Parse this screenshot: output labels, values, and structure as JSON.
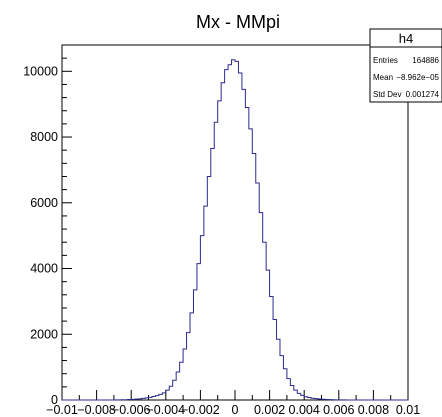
{
  "chart_data": {
    "type": "bar",
    "title": "Mx - MMpi",
    "xlabel": "",
    "ylabel": "",
    "xlim": [
      -0.01,
      0.01
    ],
    "ylim": [
      0,
      10800
    ],
    "bin_width": 0.0002,
    "x_tick_labels": [
      "−0.01",
      "−0.008",
      "−0.006",
      "−0.004",
      "−0.002",
      "0",
      "0.002",
      "0.004",
      "0.006",
      "0.008",
      "0.01"
    ],
    "x_tick_values": [
      -0.01,
      -0.008,
      -0.006,
      -0.004,
      -0.002,
      0,
      0.002,
      0.004,
      0.006,
      0.008,
      0.01
    ],
    "y_tick_labels": [
      "0",
      "2000",
      "4000",
      "6000",
      "8000",
      "10000"
    ],
    "y_tick_values": [
      0,
      2000,
      4000,
      6000,
      8000,
      10000
    ],
    "series": [
      {
        "bin_low_edges": [
          -0.01,
          -0.0098,
          -0.0096,
          -0.0094,
          -0.0092,
          -0.009,
          -0.0088,
          -0.0086,
          -0.0084,
          -0.0082,
          -0.008,
          -0.0078,
          -0.0076,
          -0.0074,
          -0.0072,
          -0.007,
          -0.0068,
          -0.0066,
          -0.0064,
          -0.0062,
          -0.006,
          -0.0058,
          -0.0056,
          -0.0054,
          -0.0052,
          -0.005,
          -0.0048,
          -0.0046,
          -0.0044,
          -0.0042,
          -0.004,
          -0.0038,
          -0.0036,
          -0.0034,
          -0.0032,
          -0.003,
          -0.0028,
          -0.0026,
          -0.0024,
          -0.0022,
          -0.002,
          -0.0018,
          -0.0016,
          -0.0014,
          -0.0012,
          -0.001,
          -0.0008,
          -0.0006,
          -0.0004,
          -0.0002,
          0,
          0.0002,
          0.0004,
          0.0006,
          0.0008,
          0.001,
          0.0012,
          0.0014,
          0.0016,
          0.0018,
          0.002,
          0.0022,
          0.0024,
          0.0026,
          0.0028,
          0.003,
          0.0032,
          0.0034,
          0.0036,
          0.0038,
          0.004,
          0.0042,
          0.0044,
          0.0046,
          0.0048,
          0.005,
          0.0052,
          0.0054,
          0.0056,
          0.0058,
          0.006,
          0.0062,
          0.0064,
          0.0066,
          0.0068,
          0.007,
          0.0072,
          0.0074,
          0.0076,
          0.0078,
          0.008,
          0.0082,
          0.0084,
          0.0086,
          0.0088,
          0.009,
          0.0092,
          0.0094,
          0.0096,
          0.0098
        ],
        "values": [
          0,
          0,
          0,
          0,
          0,
          0,
          0,
          0,
          0,
          0,
          0,
          0,
          0,
          0,
          0,
          2,
          4,
          6,
          9,
          14,
          18,
          25,
          35,
          48,
          65,
          80,
          105,
          135,
          170,
          215,
          300,
          420,
          600,
          850,
          1150,
          1550,
          2050,
          2650,
          3350,
          4150,
          5000,
          5900,
          6800,
          7650,
          8450,
          9100,
          9650,
          10050,
          10200,
          10350,
          10300,
          9950,
          9450,
          8900,
          8250,
          7500,
          6600,
          5700,
          4800,
          3950,
          3150,
          2450,
          1850,
          1350,
          950,
          650,
          440,
          300,
          200,
          140,
          100,
          75,
          55,
          40,
          30,
          22,
          16,
          11,
          8,
          5,
          4,
          2,
          1,
          1,
          0,
          0,
          0,
          0,
          0,
          0,
          0,
          0,
          0,
          0,
          0,
          0,
          0,
          0,
          0,
          0
        ]
      }
    ],
    "line_color": "#2b2b8f",
    "grid": false
  },
  "stats_box": {
    "name": "h4",
    "rows": [
      {
        "label": "Entries",
        "value": "164886"
      },
      {
        "label": "Mean",
        "value": "−8.962e−05"
      },
      {
        "label": "Std Dev",
        "value": "0.001274"
      }
    ]
  }
}
